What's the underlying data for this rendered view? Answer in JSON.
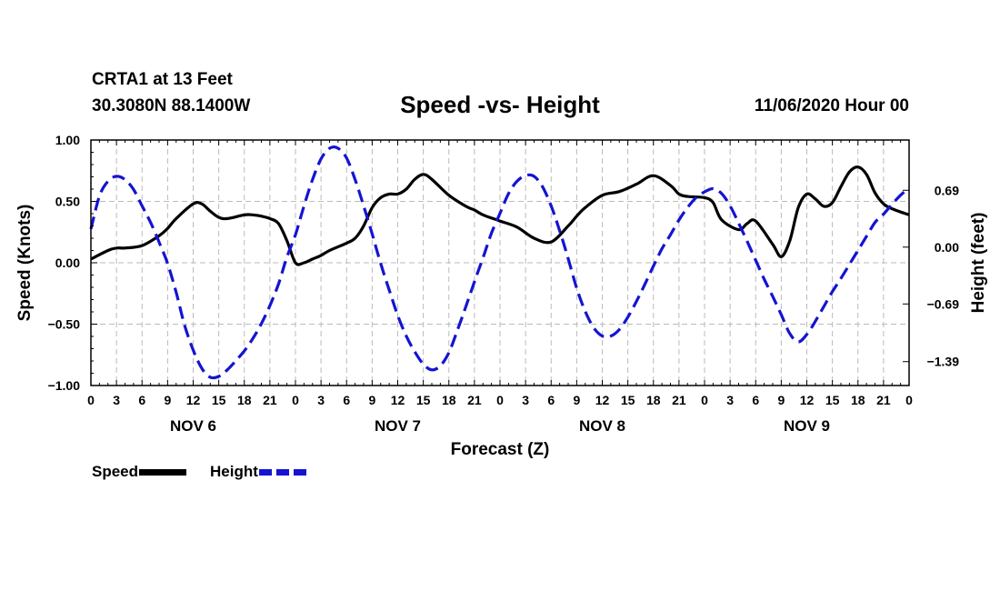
{
  "header": {
    "station": "CRTA1 at 13 Feet",
    "coords": "30.3080N 88.1400W",
    "title": "Speed -vs- Height",
    "timestamp": "11/06/2020 Hour 00"
  },
  "legend": {
    "speed_label": "Speed",
    "height_label": "Height"
  },
  "chart_data": {
    "type": "line",
    "title": "Speed -vs- Height",
    "xlabel": "Forecast (Z)",
    "ylabel_left": "Speed (Knots)",
    "ylabel_right": "Height (feet)",
    "xlim": [
      0,
      96
    ],
    "ylim_left": [
      -1.0,
      1.0
    ],
    "ylim_right": [
      -1.68,
      1.3
    ],
    "left_ticks": [
      1.0,
      0.5,
      0.0,
      -0.5,
      -1.0
    ],
    "left_tick_labels": [
      "1.00",
      "0.50",
      "0.00",
      "−0.50",
      "−1.00"
    ],
    "right_ticks": [
      0.69,
      0.0,
      -0.69,
      -1.39
    ],
    "right_tick_labels": [
      "0.69",
      "0.00",
      "−0.69",
      "−1.39"
    ],
    "x_ticks": [
      0,
      3,
      6,
      9,
      12,
      15,
      18,
      21,
      24,
      27,
      30,
      33,
      36,
      39,
      42,
      45,
      48,
      51,
      54,
      57,
      60,
      63,
      66,
      69,
      72,
      75,
      78,
      81,
      84,
      87,
      90,
      93,
      96
    ],
    "x_tick_labels": [
      "0",
      "3",
      "6",
      "9",
      "12",
      "15",
      "18",
      "21",
      "0",
      "3",
      "6",
      "9",
      "12",
      "15",
      "18",
      "21",
      "0",
      "3",
      "6",
      "9",
      "12",
      "15",
      "18",
      "21",
      "0",
      "3",
      "6",
      "9",
      "12",
      "15",
      "18",
      "21",
      "0"
    ],
    "day_labels": [
      {
        "text": "NOV 6",
        "hour": 12
      },
      {
        "text": "NOV 7",
        "hour": 36
      },
      {
        "text": "NOV 8",
        "hour": 60
      },
      {
        "text": "NOV 9",
        "hour": 84
      }
    ],
    "grid": true,
    "legend_position": "bottom-left",
    "series": [
      {
        "name": "Speed",
        "axis": "left",
        "color": "#000000",
        "style": "solid",
        "x": [
          0,
          2,
          3,
          4,
          6,
          8,
          9,
          10,
          12,
          13,
          14,
          15,
          16,
          18,
          19,
          20,
          21,
          22,
          23,
          24,
          25,
          26,
          27,
          28,
          30,
          31,
          32,
          33,
          34,
          35,
          36,
          37,
          38,
          39,
          40,
          42,
          44,
          45,
          46,
          48,
          50,
          52,
          54,
          56,
          57,
          58,
          60,
          62,
          64,
          66,
          68,
          69,
          70,
          72,
          73,
          74,
          76,
          77,
          78,
          80,
          81,
          82,
          83,
          84,
          85,
          86,
          87,
          88,
          89,
          90,
          91,
          92,
          93,
          94,
          96
        ],
        "values": [
          0.03,
          0.1,
          0.12,
          0.12,
          0.14,
          0.22,
          0.28,
          0.36,
          0.48,
          0.48,
          0.42,
          0.37,
          0.36,
          0.39,
          0.39,
          0.38,
          0.36,
          0.32,
          0.18,
          0.0,
          0.0,
          0.03,
          0.06,
          0.1,
          0.16,
          0.2,
          0.3,
          0.45,
          0.53,
          0.56,
          0.56,
          0.6,
          0.68,
          0.72,
          0.68,
          0.55,
          0.46,
          0.43,
          0.39,
          0.34,
          0.29,
          0.2,
          0.17,
          0.3,
          0.38,
          0.45,
          0.55,
          0.58,
          0.64,
          0.71,
          0.63,
          0.56,
          0.54,
          0.53,
          0.49,
          0.35,
          0.27,
          0.32,
          0.34,
          0.15,
          0.05,
          0.18,
          0.45,
          0.56,
          0.52,
          0.46,
          0.49,
          0.62,
          0.74,
          0.78,
          0.72,
          0.57,
          0.48,
          0.44,
          0.39
        ]
      },
      {
        "name": "Height",
        "axis": "right",
        "color": "#1414d2",
        "style": "dashed",
        "x": [
          0,
          1,
          2,
          3,
          4,
          5,
          6,
          7,
          8,
          9,
          10,
          11,
          12,
          13,
          14,
          15,
          16,
          17,
          18,
          19,
          20,
          21,
          22,
          23,
          24,
          25,
          26,
          27,
          28,
          29,
          30,
          31,
          32,
          33,
          34,
          35,
          36,
          37,
          38,
          39,
          40,
          41,
          42,
          43,
          44,
          45,
          46,
          47,
          48,
          49,
          50,
          51,
          52,
          53,
          54,
          55,
          56,
          57,
          58,
          59,
          60,
          61,
          62,
          63,
          64,
          65,
          66,
          67,
          68,
          69,
          70,
          71,
          72,
          73,
          74,
          75,
          76,
          77,
          78,
          79,
          80,
          81,
          82,
          83,
          84,
          85,
          86,
          87,
          88,
          89,
          90,
          91,
          92,
          93,
          94,
          95,
          96
        ],
        "values": [
          0.22,
          0.62,
          0.8,
          0.86,
          0.82,
          0.7,
          0.5,
          0.3,
          0.06,
          -0.2,
          -0.55,
          -0.95,
          -1.25,
          -1.47,
          -1.58,
          -1.57,
          -1.49,
          -1.38,
          -1.26,
          -1.11,
          -0.93,
          -0.71,
          -0.45,
          -0.12,
          0.15,
          0.5,
          0.82,
          1.07,
          1.2,
          1.2,
          1.08,
          0.82,
          0.5,
          0.16,
          -0.2,
          -0.52,
          -0.83,
          -1.08,
          -1.27,
          -1.42,
          -1.49,
          -1.44,
          -1.28,
          -1.01,
          -0.72,
          -0.42,
          -0.13,
          0.17,
          0.41,
          0.65,
          0.8,
          0.87,
          0.86,
          0.73,
          0.5,
          0.2,
          -0.14,
          -0.5,
          -0.78,
          -0.98,
          -1.08,
          -1.08,
          -1.0,
          -0.85,
          -0.66,
          -0.45,
          -0.23,
          -0.02,
          0.15,
          0.33,
          0.48,
          0.6,
          0.67,
          0.71,
          0.65,
          0.5,
          0.29,
          0.07,
          -0.16,
          -0.39,
          -0.6,
          -0.82,
          -1.05,
          -1.15,
          -1.06,
          -0.9,
          -0.72,
          -0.54,
          -0.38,
          -0.21,
          -0.04,
          0.13,
          0.3,
          0.4,
          0.52,
          0.63,
          0.72
        ]
      }
    ]
  }
}
